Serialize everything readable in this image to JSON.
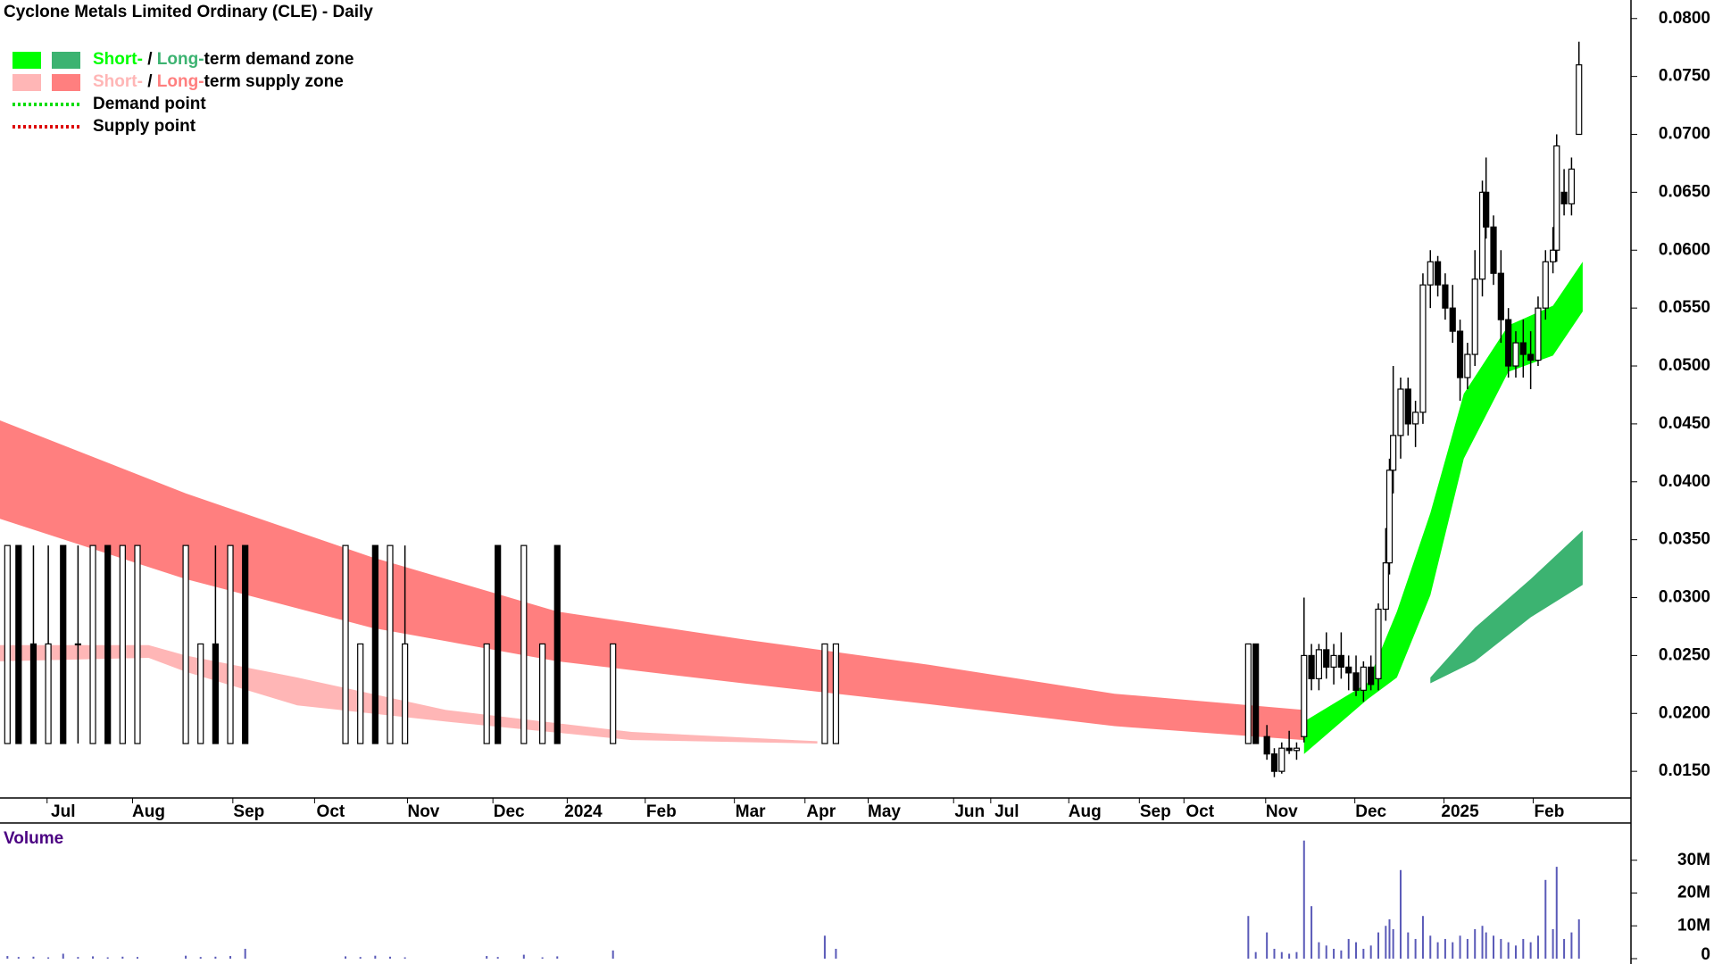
{
  "chart_data": {
    "type": "candlestick",
    "title": "Cyclone Metals Limited Ordinary (CLE) - Daily",
    "x": [
      2,
      5,
      9,
      13,
      17,
      21,
      25,
      29,
      33,
      37,
      50,
      54,
      58,
      62,
      66,
      93,
      97,
      101,
      105,
      109,
      131,
      134,
      141,
      146,
      150,
      165,
      222,
      225,
      336,
      338,
      341,
      343,
      345,
      347,
      349,
      351,
      353,
      355,
      357,
      359,
      361,
      363,
      365,
      367,
      369,
      371,
      373,
      374,
      375,
      377,
      379,
      381,
      383,
      385,
      387,
      389,
      391,
      393,
      395,
      397,
      399,
      400,
      402,
      404,
      406,
      408,
      410,
      412,
      414,
      416,
      418,
      419,
      421,
      423,
      425
    ],
    "open": [
      0.0174,
      0.0345,
      0.026,
      0.0174,
      0.0345,
      0.026,
      0.0174,
      0.0345,
      0.0174,
      0.0174,
      0.0174,
      0.0174,
      0.026,
      0.0174,
      0.0345,
      0.0174,
      0.0174,
      0.0345,
      0.0174,
      0.0174,
      0.0174,
      0.0345,
      0.0174,
      0.0174,
      0.0345,
      0.0174,
      0.0174,
      0.0174,
      0.0174,
      0.026,
      0.018,
      0.0165,
      0.015,
      0.017,
      0.0168,
      0.018,
      0.025,
      0.023,
      0.0255,
      0.024,
      0.025,
      0.024,
      0.0235,
      0.022,
      0.024,
      0.023,
      0.029,
      0.033,
      0.041,
      0.044,
      0.048,
      0.045,
      0.046,
      0.057,
      0.059,
      0.057,
      0.055,
      0.053,
      0.049,
      0.051,
      0.0575,
      0.065,
      0.062,
      0.058,
      0.054,
      0.05,
      0.052,
      0.051,
      0.0505,
      0.055,
      0.059,
      0.06,
      0.065,
      0.064,
      0.07
    ],
    "high": [
      0.0345,
      0.0345,
      0.0345,
      0.0345,
      0.0345,
      0.0345,
      0.0345,
      0.0345,
      0.0345,
      0.0345,
      0.0345,
      0.026,
      0.0345,
      0.0345,
      0.0345,
      0.0345,
      0.026,
      0.0345,
      0.0345,
      0.0345,
      0.026,
      0.0345,
      0.0345,
      0.026,
      0.0345,
      0.026,
      0.026,
      0.026,
      0.026,
      0.026,
      0.019,
      0.017,
      0.0175,
      0.0185,
      0.0175,
      0.03,
      0.026,
      0.026,
      0.027,
      0.026,
      0.027,
      0.025,
      0.025,
      0.0245,
      0.025,
      0.0295,
      0.036,
      0.042,
      0.05,
      0.049,
      0.049,
      0.047,
      0.058,
      0.06,
      0.0595,
      0.058,
      0.057,
      0.054,
      0.052,
      0.06,
      0.066,
      0.068,
      0.063,
      0.06,
      0.055,
      0.053,
      0.054,
      0.053,
      0.056,
      0.06,
      0.062,
      0.07,
      0.067,
      0.068,
      0.078
    ],
    "low": [
      0.0174,
      0.0174,
      0.0174,
      0.0174,
      0.0174,
      0.0174,
      0.0174,
      0.0174,
      0.0174,
      0.0174,
      0.0174,
      0.0174,
      0.0174,
      0.0174,
      0.0174,
      0.0174,
      0.0174,
      0.0174,
      0.0174,
      0.0174,
      0.0174,
      0.0174,
      0.0174,
      0.0174,
      0.0174,
      0.0174,
      0.0174,
      0.0174,
      0.0174,
      0.0174,
      0.016,
      0.0145,
      0.0148,
      0.0165,
      0.016,
      0.0175,
      0.022,
      0.022,
      0.023,
      0.0225,
      0.023,
      0.022,
      0.0215,
      0.021,
      0.022,
      0.022,
      0.028,
      0.032,
      0.039,
      0.042,
      0.044,
      0.043,
      0.045,
      0.055,
      0.056,
      0.054,
      0.052,
      0.047,
      0.048,
      0.05,
      0.056,
      0.061,
      0.057,
      0.052,
      0.049,
      0.049,
      0.049,
      0.048,
      0.05,
      0.054,
      0.058,
      0.059,
      0.063,
      0.063,
      0.07
    ],
    "close": [
      0.0345,
      0.0174,
      0.0174,
      0.026,
      0.0174,
      0.026,
      0.0345,
      0.0174,
      0.0345,
      0.0345,
      0.0345,
      0.026,
      0.0174,
      0.0345,
      0.0174,
      0.0345,
      0.026,
      0.0174,
      0.0345,
      0.026,
      0.026,
      0.0174,
      0.0345,
      0.026,
      0.0174,
      0.026,
      0.026,
      0.026,
      0.026,
      0.0174,
      0.0165,
      0.015,
      0.017,
      0.0168,
      0.017,
      0.025,
      0.023,
      0.0255,
      0.024,
      0.025,
      0.024,
      0.0235,
      0.022,
      0.024,
      0.0225,
      0.029,
      0.033,
      0.041,
      0.044,
      0.048,
      0.045,
      0.046,
      0.057,
      0.059,
      0.057,
      0.055,
      0.053,
      0.049,
      0.051,
      0.0575,
      0.065,
      0.062,
      0.058,
      0.054,
      0.05,
      0.052,
      0.051,
      0.0505,
      0.055,
      0.059,
      0.06,
      0.069,
      0.064,
      0.067,
      0.076
    ],
    "volume": [
      800000,
      500000,
      600000,
      400000,
      1500000,
      500000,
      700000,
      400000,
      600000,
      500000,
      900000,
      500000,
      600000,
      800000,
      3000000,
      700000,
      500000,
      900000,
      600000,
      400000,
      800000,
      500000,
      1200000,
      400000,
      700000,
      2500000,
      7000000,
      3000000,
      13000000,
      2000000,
      8000000,
      3000000,
      2000000,
      1500000,
      2000000,
      36000000,
      16000000,
      5000000,
      4000000,
      3000000,
      2500000,
      6000000,
      5000000,
      3000000,
      4000000,
      8000000,
      10000000,
      12000000,
      9000000,
      27000000,
      8000000,
      6000000,
      13000000,
      7000000,
      5000000,
      6000000,
      5000000,
      7000000,
      6000000,
      9000000,
      10000000,
      8000000,
      7000000,
      6000000,
      5000000,
      4000000,
      6000000,
      5000000,
      7000000,
      24000000,
      9000000,
      28000000,
      6000000,
      8000000,
      12000000
    ],
    "xlim": [
      0,
      439
    ],
    "xticks": [
      {
        "value": 17,
        "label": "Jul"
      },
      {
        "value": 40,
        "label": "Aug"
      },
      {
        "value": 67,
        "label": "Sep"
      },
      {
        "value": 89,
        "label": "Oct"
      },
      {
        "value": 114,
        "label": "Nov"
      },
      {
        "value": 137,
        "label": "Dec"
      },
      {
        "value": 157,
        "label": "2024"
      },
      {
        "value": 178,
        "label": "Feb"
      },
      {
        "value": 202,
        "label": "Mar"
      },
      {
        "value": 221,
        "label": "Apr"
      },
      {
        "value": 238,
        "label": "May"
      },
      {
        "value": 261,
        "label": "Jun"
      },
      {
        "value": 271,
        "label": "Jul"
      },
      {
        "value": 292,
        "label": "Aug"
      },
      {
        "value": 311,
        "label": "Sep"
      },
      {
        "value": 323,
        "label": "Oct"
      },
      {
        "value": 345,
        "label": "Nov"
      },
      {
        "value": 369,
        "label": "Dec"
      },
      {
        "value": 393,
        "label": "2025"
      },
      {
        "value": 417,
        "label": "Feb"
      }
    ],
    "ylim": [
      0.0127,
      0.0816
    ],
    "yticks": [
      {
        "value": 0.015,
        "label": "0.0150"
      },
      {
        "value": 0.02,
        "label": "0.0200"
      },
      {
        "value": 0.025,
        "label": "0.0250"
      },
      {
        "value": 0.03,
        "label": "0.0300"
      },
      {
        "value": 0.035,
        "label": "0.0350"
      },
      {
        "value": 0.04,
        "label": "0.0400"
      },
      {
        "value": 0.045,
        "label": "0.0450"
      },
      {
        "value": 0.05,
        "label": "0.0500"
      },
      {
        "value": 0.055,
        "label": "0.0550"
      },
      {
        "value": 0.06,
        "label": "0.0600"
      },
      {
        "value": 0.065,
        "label": "0.0650"
      },
      {
        "value": 0.07,
        "label": "0.0700"
      },
      {
        "value": 0.075,
        "label": "0.0750"
      },
      {
        "value": 0.08,
        "label": "0.0800"
      }
    ],
    "up_color": "#ffffff",
    "down_color": "#000000",
    "zones": [
      {
        "color": "#ff7f7f",
        "x": [
          0,
          50,
          100,
          150,
          200,
          250,
          300,
          351
        ],
        "upper": [
          0.0453,
          0.039,
          0.0335,
          0.0288,
          0.0264,
          0.0242,
          0.0217,
          0.0203
        ],
        "lower": [
          0.0368,
          0.0316,
          0.0274,
          0.0245,
          0.0226,
          0.0208,
          0.0189,
          0.0177
        ]
      },
      {
        "color": "#ffb6b6",
        "x": [
          0,
          40,
          50,
          80,
          120,
          170,
          220
        ],
        "upper": [
          0.0259,
          0.0259,
          0.025,
          0.0231,
          0.0203,
          0.0184,
          0.0176
        ],
        "lower": [
          0.0245,
          0.0248,
          0.0236,
          0.0207,
          0.0193,
          0.0177,
          0.0174
        ]
      },
      {
        "color": "#3cb371",
        "x": [
          385,
          397,
          412,
          426
        ],
        "upper": [
          0.0231,
          0.0274,
          0.0316,
          0.0358
        ],
        "lower": [
          0.0226,
          0.0245,
          0.0283,
          0.0311
        ]
      },
      {
        "color": "#00ff00",
        "x": [
          351,
          368,
          376,
          385,
          394,
          406,
          418,
          426
        ],
        "upper": [
          0.0193,
          0.0226,
          0.0288,
          0.0373,
          0.0476,
          0.0535,
          0.0552,
          0.059
        ],
        "lower": [
          0.0165,
          0.0212,
          0.0231,
          0.0302,
          0.042,
          0.0495,
          0.0509,
          0.0547
        ]
      }
    ],
    "legend": [
      {
        "short": "Short-",
        "long": "Long-",
        "rest": "term demand zone",
        "short_color": "#00ff00",
        "long_color": "#3cb371"
      },
      {
        "short": "Short-",
        "long": "Long-",
        "rest": "term supply zone",
        "short_color": "#ffb6b6",
        "long_color": "#ff7f7f"
      },
      {
        "label": "Demand point",
        "color": "#00dd00"
      },
      {
        "label": "Supply point",
        "color": "#dd0000"
      }
    ],
    "volume_panel": {
      "label": "Volume",
      "color": "#5a5ab8",
      "ylim": [
        0,
        40000000
      ],
      "yticks": [
        0,
        {
          "value": 10000000,
          "label": "10M"
        },
        {
          "value": 20000000,
          "label": "20M"
        },
        {
          "value": 30000000,
          "label": "30M"
        }
      ]
    }
  }
}
